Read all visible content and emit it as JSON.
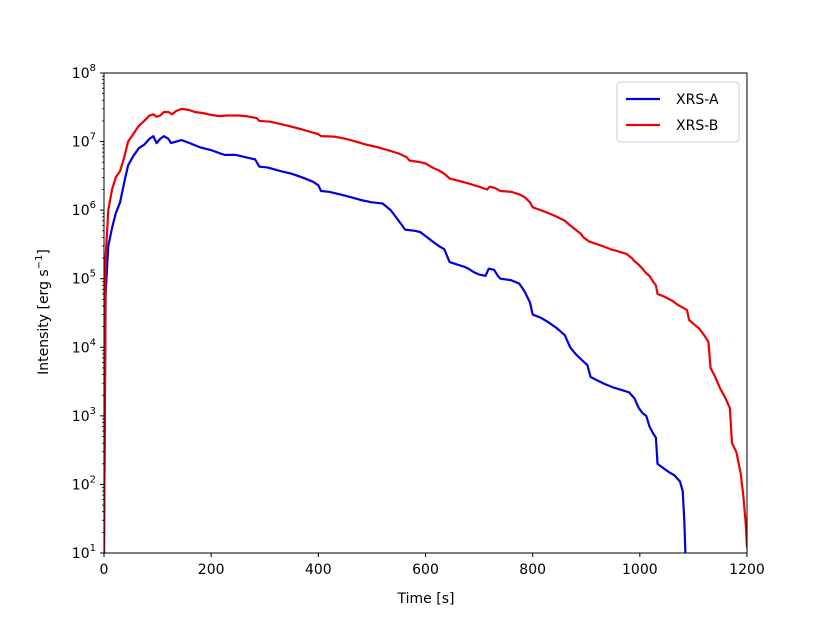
{
  "chart_data": {
    "type": "line",
    "xlabel": "Time [s]",
    "ylabel_main": "Intensity [erg s",
    "ylabel_sup": "−1",
    "ylabel_close": "]",
    "xlim": [
      0,
      1200
    ],
    "ylim": [
      10,
      100000000
    ],
    "yscale": "log",
    "grid": false,
    "legend_position": "top-right",
    "x_ticks": [
      0,
      200,
      400,
      600,
      800,
      1000,
      1200
    ],
    "x_tick_labels": [
      "0",
      "200",
      "400",
      "600",
      "800",
      "1000",
      "1200"
    ],
    "y_ticks": [
      10,
      100,
      1000,
      10000,
      100000,
      1000000,
      10000000,
      100000000
    ],
    "y_tick_base": "10",
    "y_tick_exps": [
      "1",
      "2",
      "3",
      "4",
      "5",
      "6",
      "7",
      "8"
    ],
    "series": [
      {
        "name": "XRS-A",
        "color": "#0000dd",
        "points": [
          [
            0,
            10
          ],
          [
            3,
            60000
          ],
          [
            8,
            300000
          ],
          [
            15,
            550000
          ],
          [
            22,
            900000
          ],
          [
            30,
            1300000
          ],
          [
            38,
            2600000
          ],
          [
            45,
            4500000
          ],
          [
            55,
            6200000
          ],
          [
            65,
            8000000
          ],
          [
            75,
            9000000
          ],
          [
            85,
            11000000
          ],
          [
            92,
            12000000
          ],
          [
            98,
            9500000
          ],
          [
            105,
            11000000
          ],
          [
            112,
            12000000
          ],
          [
            120,
            11000000
          ],
          [
            125,
            9500000
          ],
          [
            135,
            10000000
          ],
          [
            145,
            10500000
          ],
          [
            160,
            9500000
          ],
          [
            180,
            8200000
          ],
          [
            200,
            7500000
          ],
          [
            215,
            6800000
          ],
          [
            225,
            6400000
          ],
          [
            245,
            6400000
          ],
          [
            265,
            5900000
          ],
          [
            282,
            5500000
          ],
          [
            290,
            4300000
          ],
          [
            305,
            4200000
          ],
          [
            330,
            3700000
          ],
          [
            350,
            3400000
          ],
          [
            370,
            3000000
          ],
          [
            390,
            2600000
          ],
          [
            400,
            2300000
          ],
          [
            405,
            1900000
          ],
          [
            420,
            1850000
          ],
          [
            440,
            1700000
          ],
          [
            460,
            1550000
          ],
          [
            480,
            1400000
          ],
          [
            500,
            1300000
          ],
          [
            520,
            1250000
          ],
          [
            535,
            1000000
          ],
          [
            550,
            700000
          ],
          [
            562,
            520000
          ],
          [
            580,
            500000
          ],
          [
            590,
            480000
          ],
          [
            600,
            420000
          ],
          [
            615,
            340000
          ],
          [
            625,
            300000
          ],
          [
            635,
            270000
          ],
          [
            645,
            175000
          ],
          [
            660,
            160000
          ],
          [
            672,
            150000
          ],
          [
            680,
            140000
          ],
          [
            690,
            125000
          ],
          [
            700,
            115000
          ],
          [
            712,
            110000
          ],
          [
            718,
            140000
          ],
          [
            728,
            135000
          ],
          [
            735,
            110000
          ],
          [
            740,
            100000
          ],
          [
            760,
            95000
          ],
          [
            775,
            85000
          ],
          [
            785,
            65000
          ],
          [
            795,
            45000
          ],
          [
            800,
            30000
          ],
          [
            815,
            27000
          ],
          [
            830,
            23000
          ],
          [
            845,
            19000
          ],
          [
            860,
            15000
          ],
          [
            870,
            10000
          ],
          [
            880,
            8000
          ],
          [
            892,
            6500
          ],
          [
            902,
            5500
          ],
          [
            908,
            3700
          ],
          [
            920,
            3300
          ],
          [
            935,
            2900
          ],
          [
            950,
            2600
          ],
          [
            965,
            2400
          ],
          [
            980,
            2200
          ],
          [
            990,
            1800
          ],
          [
            998,
            1300
          ],
          [
            1005,
            1100
          ],
          [
            1012,
            1000
          ],
          [
            1018,
            700
          ],
          [
            1025,
            550
          ],
          [
            1030,
            480
          ],
          [
            1033,
            200
          ],
          [
            1045,
            170
          ],
          [
            1055,
            150
          ],
          [
            1065,
            135
          ],
          [
            1075,
            110
          ],
          [
            1080,
            80
          ],
          [
            1083,
            30
          ],
          [
            1085,
            10
          ]
        ]
      },
      {
        "name": "XRS-B",
        "color": "#ee0000",
        "points": [
          [
            0,
            10
          ],
          [
            3,
            200000
          ],
          [
            8,
            1000000
          ],
          [
            15,
            2000000
          ],
          [
            22,
            3000000
          ],
          [
            30,
            3700000
          ],
          [
            38,
            6000000
          ],
          [
            45,
            10000000
          ],
          [
            55,
            13000000
          ],
          [
            65,
            17000000
          ],
          [
            75,
            20000000
          ],
          [
            85,
            24000000
          ],
          [
            92,
            25000000
          ],
          [
            98,
            23000000
          ],
          [
            105,
            24000000
          ],
          [
            112,
            27000000
          ],
          [
            120,
            27000000
          ],
          [
            127,
            25000000
          ],
          [
            135,
            28000000
          ],
          [
            145,
            30000000
          ],
          [
            158,
            29000000
          ],
          [
            170,
            27000000
          ],
          [
            185,
            26000000
          ],
          [
            200,
            24500000
          ],
          [
            215,
            23500000
          ],
          [
            230,
            24000000
          ],
          [
            250,
            24000000
          ],
          [
            265,
            23500000
          ],
          [
            285,
            22000000
          ],
          [
            290,
            20000000
          ],
          [
            310,
            19500000
          ],
          [
            330,
            18000000
          ],
          [
            350,
            16500000
          ],
          [
            370,
            15000000
          ],
          [
            390,
            13500000
          ],
          [
            400,
            12800000
          ],
          [
            405,
            12000000
          ],
          [
            430,
            11800000
          ],
          [
            450,
            11000000
          ],
          [
            470,
            10000000
          ],
          [
            490,
            9000000
          ],
          [
            510,
            8300000
          ],
          [
            530,
            7500000
          ],
          [
            550,
            6700000
          ],
          [
            565,
            5900000
          ],
          [
            570,
            5300000
          ],
          [
            590,
            5000000
          ],
          [
            600,
            4800000
          ],
          [
            615,
            4100000
          ],
          [
            625,
            3800000
          ],
          [
            635,
            3400000
          ],
          [
            645,
            2900000
          ],
          [
            660,
            2700000
          ],
          [
            680,
            2450000
          ],
          [
            700,
            2200000
          ],
          [
            715,
            2000000
          ],
          [
            720,
            2200000
          ],
          [
            730,
            2100000
          ],
          [
            740,
            1900000
          ],
          [
            760,
            1850000
          ],
          [
            775,
            1700000
          ],
          [
            785,
            1550000
          ],
          [
            795,
            1300000
          ],
          [
            800,
            1100000
          ],
          [
            815,
            1000000
          ],
          [
            830,
            900000
          ],
          [
            845,
            800000
          ],
          [
            860,
            700000
          ],
          [
            870,
            600000
          ],
          [
            880,
            520000
          ],
          [
            890,
            450000
          ],
          [
            895,
            400000
          ],
          [
            905,
            350000
          ],
          [
            915,
            330000
          ],
          [
            930,
            300000
          ],
          [
            945,
            270000
          ],
          [
            960,
            250000
          ],
          [
            975,
            230000
          ],
          [
            985,
            200000
          ],
          [
            990,
            180000
          ],
          [
            998,
            160000
          ],
          [
            1005,
            140000
          ],
          [
            1012,
            120000
          ],
          [
            1018,
            110000
          ],
          [
            1025,
            90000
          ],
          [
            1030,
            80000
          ],
          [
            1033,
            60000
          ],
          [
            1045,
            55000
          ],
          [
            1060,
            48000
          ],
          [
            1070,
            42000
          ],
          [
            1080,
            38000
          ],
          [
            1088,
            35000
          ],
          [
            1092,
            25000
          ],
          [
            1100,
            22000
          ],
          [
            1110,
            19000
          ],
          [
            1120,
            15000
          ],
          [
            1128,
            12000
          ],
          [
            1132,
            5000
          ],
          [
            1140,
            3800
          ],
          [
            1150,
            2500
          ],
          [
            1160,
            1800
          ],
          [
            1168,
            1300
          ],
          [
            1172,
            400
          ],
          [
            1180,
            300
          ],
          [
            1188,
            150
          ],
          [
            1193,
            70
          ],
          [
            1198,
            25
          ],
          [
            1200,
            12
          ]
        ]
      }
    ]
  }
}
